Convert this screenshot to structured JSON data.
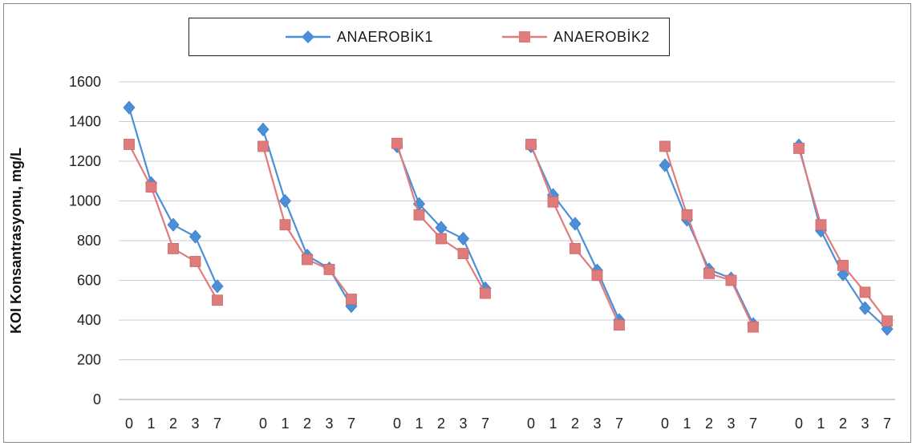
{
  "chart_data": {
    "type": "line",
    "title": "",
    "xlabel": "",
    "ylabel": "KOI Konsantrasyonu, mg/L",
    "ylim": [
      0,
      1600
    ],
    "yticks": [
      0,
      200,
      400,
      600,
      800,
      1000,
      1200,
      1400,
      1600
    ],
    "grid": true,
    "legend_position": "top",
    "categories": [
      "0",
      "1",
      "2",
      "3",
      "7",
      "0",
      "1",
      "2",
      "3",
      "7",
      "0",
      "1",
      "2",
      "3",
      "7",
      "0",
      "1",
      "2",
      "3",
      "7",
      "0",
      "1",
      "2",
      "3",
      "7",
      "0",
      "1",
      "2",
      "3",
      "7"
    ],
    "group_size": 5,
    "series": [
      {
        "name": "ANAEROBİK1",
        "color": "#4a90d9",
        "marker": "diamond",
        "values": [
          1470,
          1090,
          880,
          820,
          570,
          1360,
          1000,
          725,
          660,
          470,
          1275,
          985,
          865,
          810,
          560,
          1275,
          1030,
          885,
          650,
          400,
          1180,
          905,
          655,
          610,
          380,
          1280,
          850,
          630,
          460,
          355
        ]
      },
      {
        "name": "ANAEROBİK2",
        "color": "#e07b7b",
        "marker": "square",
        "values": [
          1285,
          1070,
          760,
          695,
          500,
          1275,
          880,
          705,
          655,
          505,
          1290,
          930,
          810,
          735,
          535,
          1285,
          995,
          760,
          625,
          375,
          1275,
          930,
          635,
          600,
          365,
          1265,
          880,
          675,
          540,
          395
        ]
      }
    ]
  }
}
